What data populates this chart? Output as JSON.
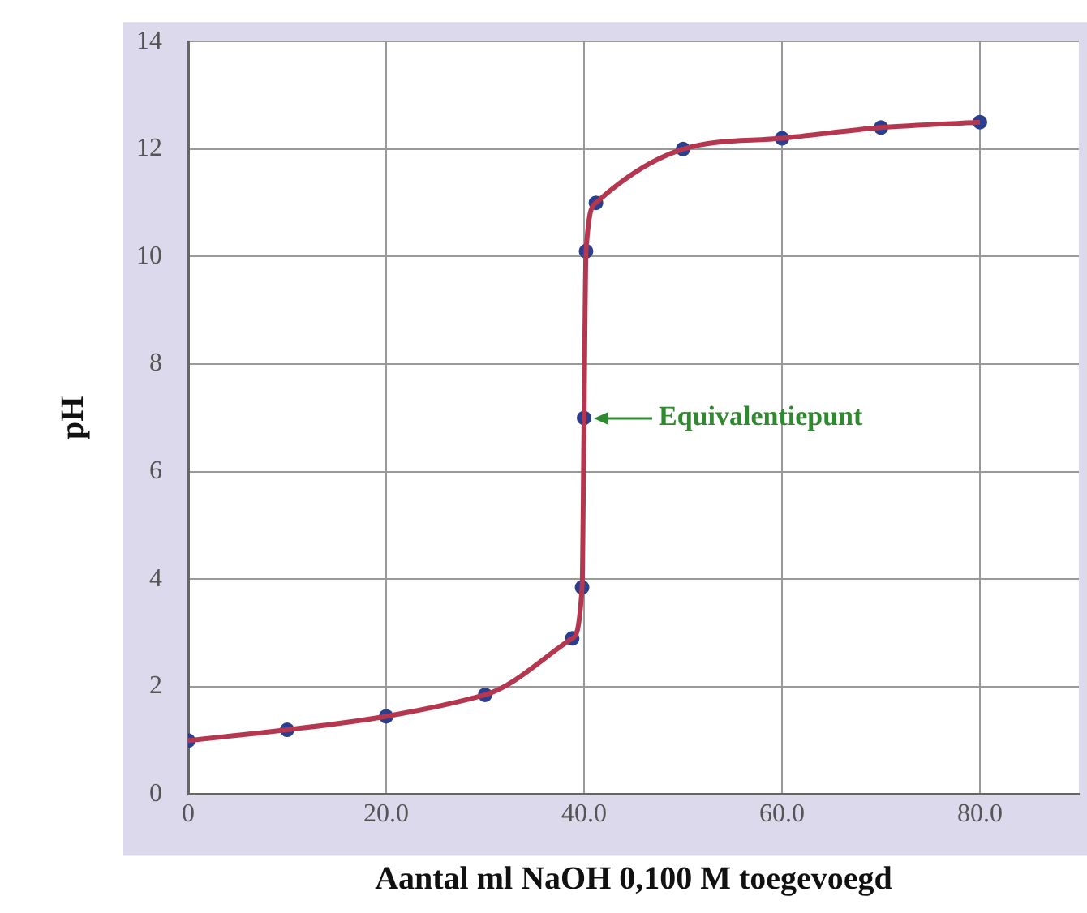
{
  "chart_data": {
    "type": "line",
    "xlabel": "Aantal ml NaOH 0,100 M toegevoegd",
    "ylabel": "pH",
    "xlim": [
      0,
      90
    ],
    "xticks": [
      0,
      {
        "value": 20,
        "label": "20.0"
      },
      {
        "value": 40,
        "label": "40.0"
      },
      {
        "value": 60,
        "label": "60.0"
      },
      {
        "value": 80,
        "label": "80.0"
      }
    ],
    "ylim": [
      0,
      14
    ],
    "yticks": [
      0,
      2,
      4,
      6,
      8,
      10,
      12,
      14
    ],
    "grid": true,
    "legend": false,
    "series": [
      {
        "marker": "none",
        "color": "#b5374f",
        "x": [
          0,
          10,
          20,
          30,
          38.8,
          39.8,
          40,
          40.2,
          41.2,
          50,
          60,
          70,
          80
        ],
        "values": [
          1.0,
          1.2,
          1.45,
          1.85,
          2.9,
          3.85,
          7.0,
          10.1,
          11.0,
          12.0,
          12.2,
          12.4,
          12.5
        ]
      },
      {
        "type": "scatter",
        "marker": "circle",
        "color": "#2a3f8f",
        "x": [
          0,
          10,
          20,
          30,
          38.8,
          39.8,
          40,
          40.2,
          41.2,
          50,
          60,
          70,
          80
        ],
        "values": [
          1.0,
          1.2,
          1.45,
          1.85,
          2.9,
          3.85,
          7.0,
          10.1,
          11.0,
          12.0,
          12.2,
          12.4,
          12.5
        ]
      }
    ],
    "annotations": [
      {
        "text": "Equivalentiepunt",
        "x": 40,
        "y": 7
      }
    ]
  }
}
